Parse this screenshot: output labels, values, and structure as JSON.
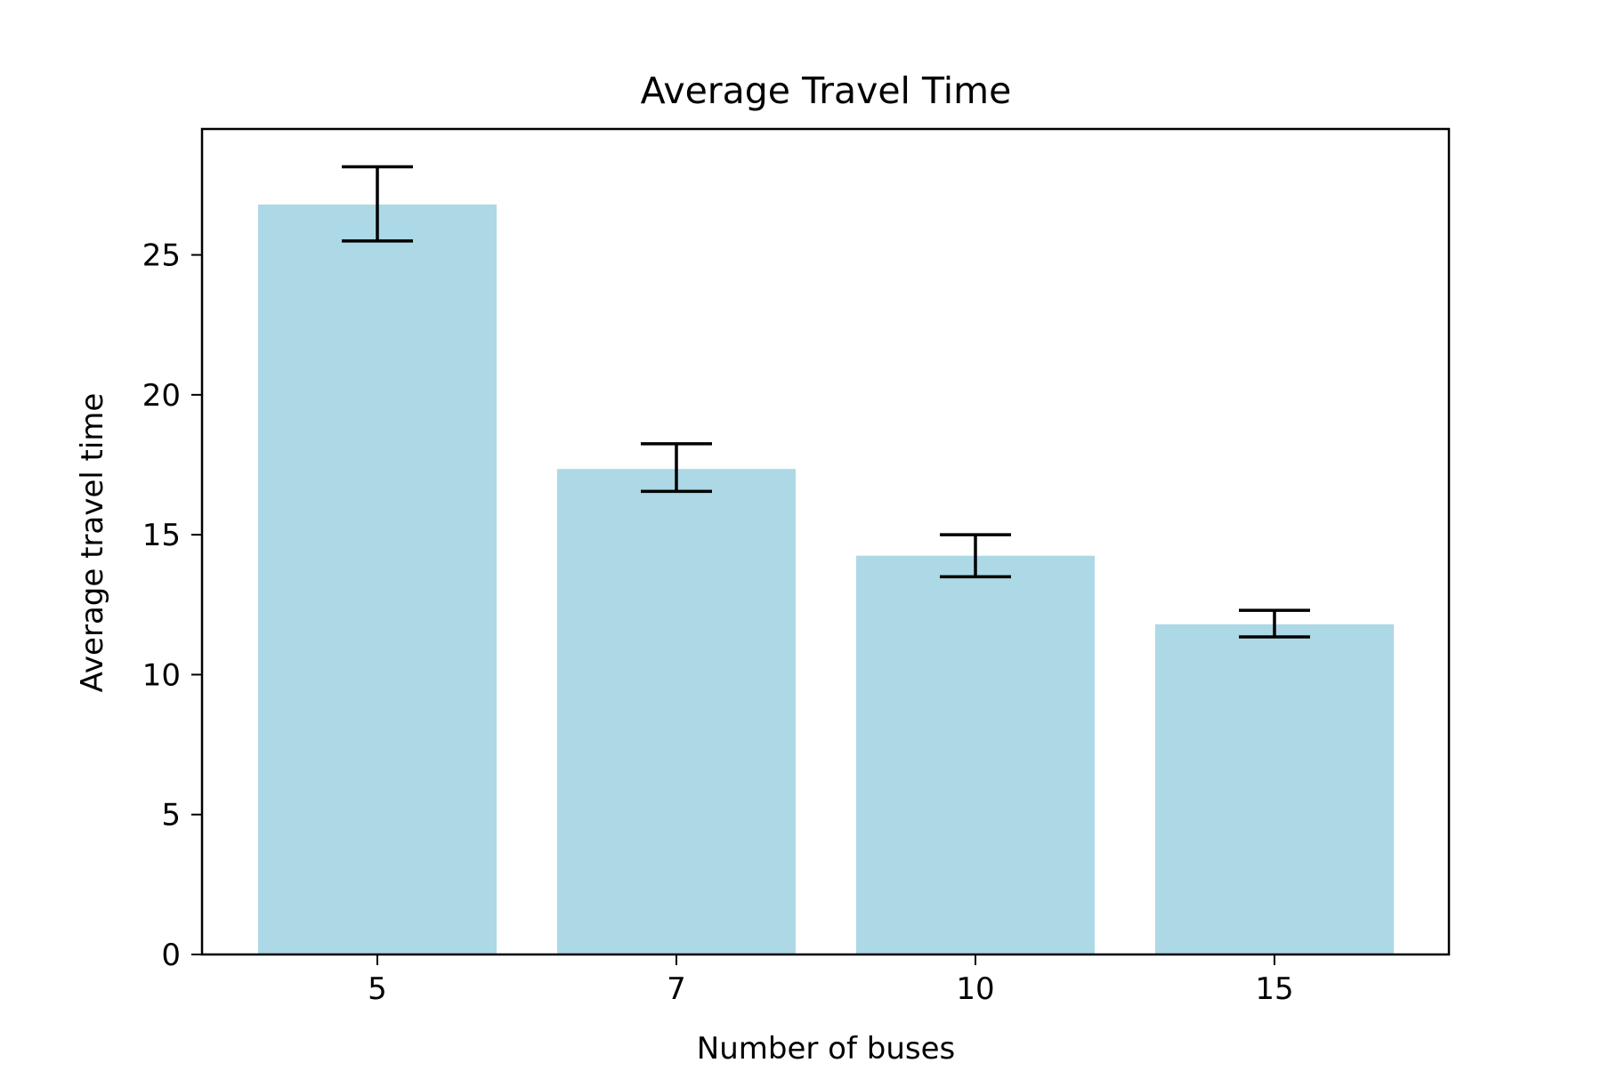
{
  "chart_data": {
    "type": "bar",
    "title": "Average Travel Time",
    "xlabel": "Number of buses",
    "ylabel": "Average travel time",
    "categories": [
      "5",
      "7",
      "10",
      "15"
    ],
    "series": [
      {
        "values": [
          26.8,
          17.35,
          14.25,
          11.8
        ],
        "error_low": [
          25.5,
          16.55,
          13.5,
          11.35
        ],
        "error_high": [
          28.15,
          18.25,
          15.0,
          12.3
        ]
      }
    ],
    "ylim": [
      0,
      29.5
    ],
    "yticks": [
      0,
      5,
      10,
      15,
      20,
      25
    ],
    "ytick_labels": [
      "0",
      "5",
      "10",
      "15",
      "20",
      "25"
    ],
    "grid": false,
    "colors": {
      "bar": "#add8e6",
      "error_bar": "#000000",
      "axes": "#000000"
    }
  }
}
